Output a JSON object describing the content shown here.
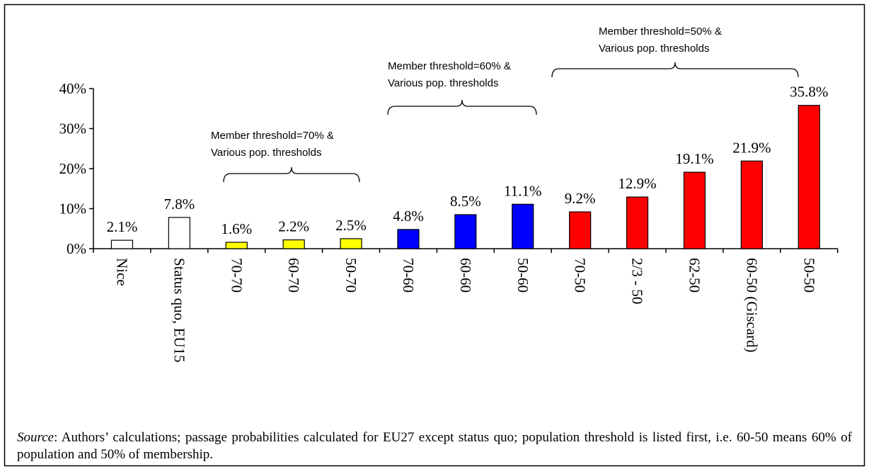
{
  "chart_data": {
    "type": "bar",
    "categories": [
      "Nice",
      "Status quo, EU15",
      "70-70",
      "60-70",
      "50-70",
      "70-60",
      "60-60",
      "50-60",
      "70-50",
      "2/3 - 50",
      "62-50",
      "60-50 (Giscard)",
      "50-50"
    ],
    "values": [
      2.1,
      7.8,
      1.6,
      2.2,
      2.5,
      4.8,
      8.5,
      11.1,
      9.2,
      12.9,
      19.1,
      21.9,
      35.8
    ],
    "value_labels": [
      "2.1%",
      "7.8%",
      "1.6%",
      "2.2%",
      "2.5%",
      "4.8%",
      "8.5%",
      "11.1%",
      "9.2%",
      "12.9%",
      "19.1%",
      "21.9%",
      "35.8%"
    ],
    "colors": [
      "#ffffff",
      "#ffffff",
      "#ffff00",
      "#ffff00",
      "#ffff00",
      "#0000ff",
      "#0000ff",
      "#0000ff",
      "#ff0000",
      "#ff0000",
      "#ff0000",
      "#ff0000",
      "#ff0000"
    ],
    "ylim": [
      0,
      40
    ],
    "yticks": [
      {
        "value": 0,
        "label": "0%"
      },
      {
        "value": 10,
        "label": "10%"
      },
      {
        "value": 20,
        "label": "20%"
      },
      {
        "value": 30,
        "label": "30%"
      },
      {
        "value": 40,
        "label": "40%"
      }
    ],
    "annotations": [
      {
        "lines": [
          "Member threshold=70% &",
          "Various pop. thresholds"
        ]
      },
      {
        "lines": [
          "Member threshold=60% &",
          "Various pop. thresholds"
        ]
      },
      {
        "lines": [
          "Member threshold=50% &",
          "Various pop. thresholds"
        ]
      }
    ],
    "source_label": "Source",
    "source_text": ": Authors’ calculations; passage probabilities calculated for EU27 except status quo; population threshold is listed first, i.e. 60-50 means 60% of population and 50% of membership."
  }
}
